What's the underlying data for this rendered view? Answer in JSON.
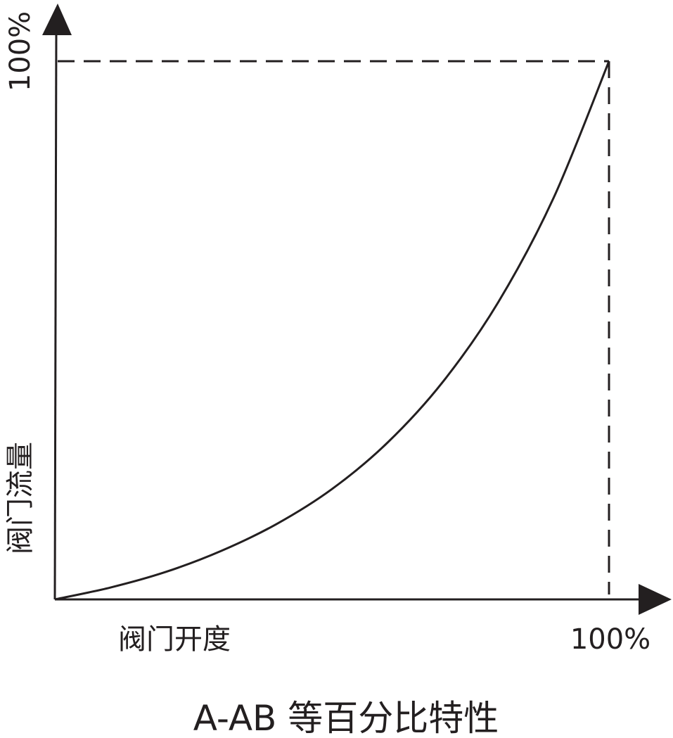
{
  "chart_data": {
    "type": "line",
    "title": "A-AB 等百分比特性",
    "xlabel": "阀门开度",
    "ylabel": "阀门流量",
    "x_tick_labels": [
      "100%"
    ],
    "y_tick_labels": [
      "100%"
    ],
    "xlim": [
      0,
      100
    ],
    "ylim": [
      0,
      100
    ],
    "grid": false,
    "reference_lines": "dashed lines at x=100% and y=100%",
    "series": [
      {
        "x": [
          0,
          10,
          20,
          30,
          40,
          50,
          60,
          70,
          80,
          90,
          100
        ],
        "y": [
          0,
          2.2,
          5.1,
          9.0,
          14.0,
          20.5,
          29.1,
          40.4,
          55.2,
          74.6,
          100
        ]
      }
    ],
    "colors": {
      "line": "#231f20",
      "background": "#ffffff"
    }
  }
}
